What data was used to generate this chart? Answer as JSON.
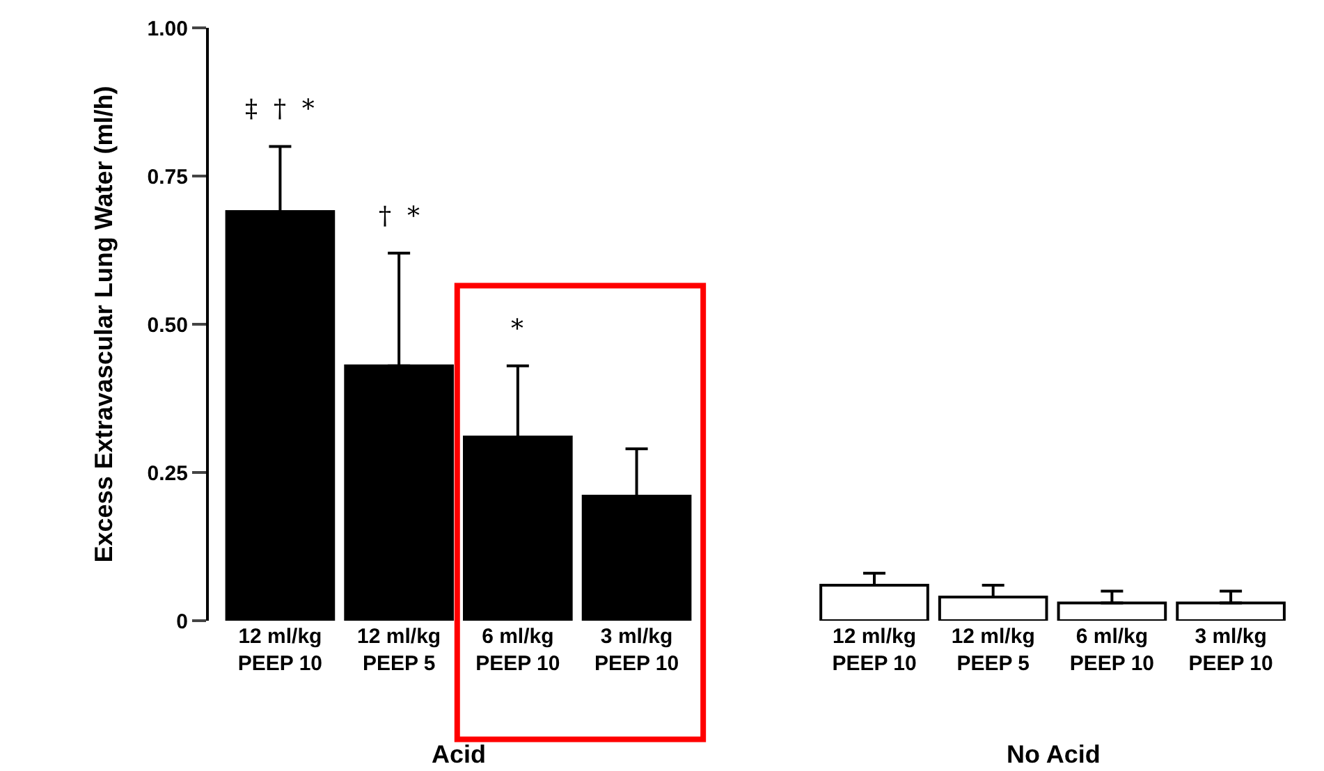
{
  "chart_data": {
    "type": "bar",
    "ylabel": "Excess Extravascular Lung Water (ml/h)",
    "categories": [
      "12 ml/kg\nPEEP 10",
      "12 ml/kg\nPEEP 5",
      "6 ml/kg\nPEEP 10",
      "3 ml/kg\nPEEP 10",
      null,
      "12 ml/kg\nPEEP 10",
      "12 ml/kg\nPEEP 5",
      "6 ml/kg\nPEEP 10",
      "3 ml/kg\nPEEP 10"
    ],
    "values": [
      0.69,
      0.43,
      0.31,
      0.21,
      null,
      0.06,
      0.04,
      0.03,
      0.03
    ],
    "errors": [
      [
        0.69,
        0.8
      ],
      [
        0.43,
        0.62
      ],
      [
        0.31,
        0.43
      ],
      [
        0.21,
        0.29
      ],
      null,
      [
        0.06,
        0.08
      ],
      [
        0.04,
        0.06
      ],
      [
        0.03,
        0.05
      ],
      [
        0.03,
        0.05
      ]
    ],
    "colors": [
      "#000000",
      "#000000",
      "#000000",
      "#000000",
      null,
      "#ffffff",
      "#ffffff",
      "#ffffff",
      "#ffffff"
    ],
    "ylim": [
      0,
      1.0
    ],
    "yticks": [
      0,
      {
        "value": 0.25,
        "label": "0.25"
      },
      {
        "value": 0.5,
        "label": "0.50"
      },
      0.75,
      {
        "value": 1.0,
        "label": "1.00"
      }
    ],
    "annotations": [
      "‡  †  *",
      "†  *",
      "*",
      "Acid",
      "No Acid"
    ]
  }
}
